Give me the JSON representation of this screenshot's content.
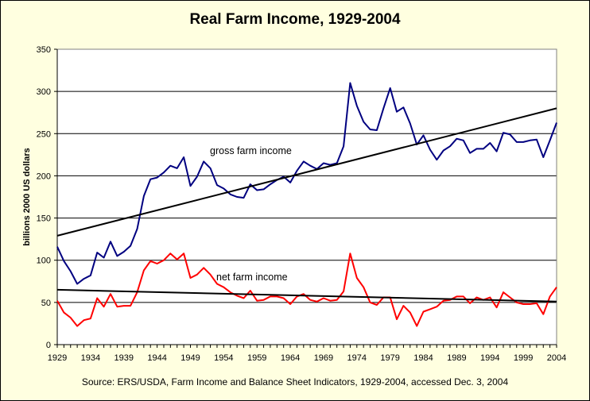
{
  "chart_data": {
    "type": "line",
    "title": "Real Farm Income, 1929-2004",
    "ylabel": "billions 2000 US dollars",
    "xlabel": "",
    "xlim": [
      1929,
      2004
    ],
    "ylim": [
      0,
      350
    ],
    "yticks": [
      0,
      50,
      100,
      150,
      200,
      250,
      300,
      350
    ],
    "xticks": [
      1929,
      1934,
      1939,
      1944,
      1949,
      1954,
      1959,
      1964,
      1969,
      1974,
      1979,
      1984,
      1989,
      1994,
      1999,
      2004
    ],
    "grid": "horizontal",
    "source": "Source:  ERS/USDA, Farm Income and Balance Sheet Indicators, 1929-2004, accessed Dec. 3, 2004",
    "annotations": [
      "gross farm income",
      "net farm income"
    ],
    "x": [
      1929,
      1930,
      1931,
      1932,
      1933,
      1934,
      1935,
      1936,
      1937,
      1938,
      1939,
      1940,
      1941,
      1942,
      1943,
      1944,
      1945,
      1946,
      1947,
      1948,
      1949,
      1950,
      1951,
      1952,
      1953,
      1954,
      1955,
      1956,
      1957,
      1958,
      1959,
      1960,
      1961,
      1962,
      1963,
      1964,
      1965,
      1966,
      1967,
      1968,
      1969,
      1970,
      1971,
      1972,
      1973,
      1974,
      1975,
      1976,
      1977,
      1978,
      1979,
      1980,
      1981,
      1982,
      1983,
      1984,
      1985,
      1986,
      1987,
      1988,
      1989,
      1990,
      1991,
      1992,
      1993,
      1994,
      1995,
      1996,
      1997,
      1998,
      1999,
      2000,
      2001,
      2002,
      2003,
      2004
    ],
    "series": [
      {
        "color": "#000080",
        "values": [
          116,
          99,
          87,
          72,
          78,
          82,
          109,
          103,
          122,
          105,
          110,
          117,
          137,
          176,
          196,
          198,
          204,
          212,
          209,
          222,
          188,
          199,
          217,
          209,
          189,
          185,
          178,
          175,
          174,
          190,
          183,
          184,
          190,
          195,
          199,
          192,
          206,
          217,
          212,
          208,
          215,
          213,
          215,
          235,
          310,
          283,
          264,
          255,
          254,
          280,
          304,
          276,
          281,
          262,
          237,
          248,
          231,
          219,
          230,
          235,
          244,
          242,
          227,
          232,
          232,
          239,
          229,
          251,
          249,
          240,
          240,
          242,
          243,
          222,
          242,
          263
        ]
      },
      {
        "color": "#ff0000",
        "values": [
          52,
          38,
          32,
          22,
          29,
          31,
          55,
          45,
          60,
          45,
          46,
          46,
          62,
          88,
          99,
          96,
          100,
          108,
          101,
          108,
          79,
          83,
          91,
          83,
          72,
          68,
          62,
          58,
          55,
          64,
          52,
          53,
          57,
          57,
          55,
          48,
          57,
          60,
          53,
          51,
          55,
          52,
          53,
          63,
          108,
          79,
          68,
          50,
          47,
          56,
          56,
          30,
          46,
          38,
          22,
          39,
          42,
          45,
          52,
          53,
          57,
          57,
          49,
          56,
          53,
          56,
          44,
          62,
          56,
          50,
          48,
          48,
          49,
          36,
          57,
          68
        ]
      },
      {
        "color": "#000000",
        "trend": true,
        "values_at_ends": [
          129,
          280
        ]
      },
      {
        "color": "#000000",
        "trend": true,
        "values_at_ends": [
          65,
          51
        ]
      }
    ]
  }
}
